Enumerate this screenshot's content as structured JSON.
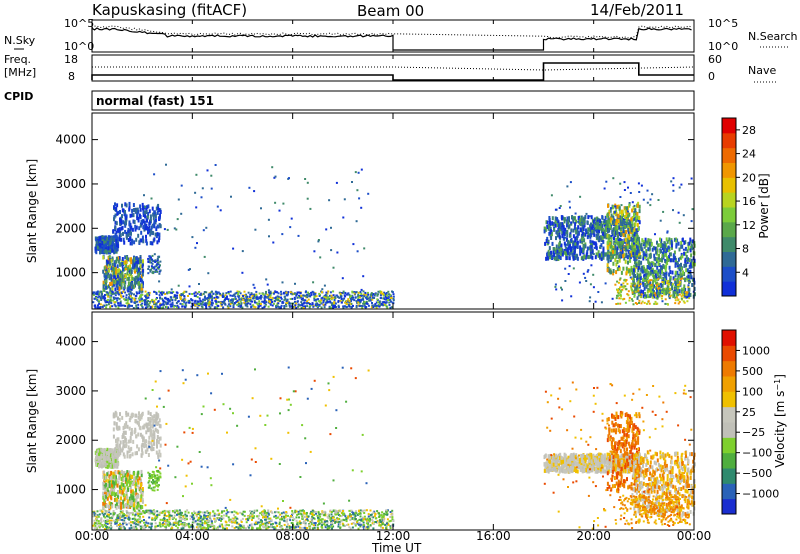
{
  "header": {
    "station": "Kapuskasing (fitACF)",
    "beam": "Beam 00",
    "date": "14/Feb/2011"
  },
  "side_labels": {
    "nsky": "N.Sky",
    "freq_line1": "Freq.",
    "freq_line2": "[MHz]",
    "cpid": "CPID",
    "nsearch": "N.Search",
    "nave": "Nave"
  },
  "small_axes": {
    "noise_left": [
      "10^5",
      "10^0"
    ],
    "noise_right": [
      "10^5",
      "10^0"
    ],
    "freq_left": [
      "18",
      "8"
    ],
    "nave_right": [
      "60",
      "0"
    ]
  },
  "cpid_text": "normal (fast) 151",
  "time_axis": {
    "label": "Time UT",
    "ticks": [
      "00:00",
      "04:00",
      "08:00",
      "12:00",
      "16:00",
      "20:00",
      "00:00"
    ],
    "tick_hours": [
      0,
      4,
      8,
      12,
      16,
      20,
      24
    ]
  },
  "chart_data": [
    {
      "type": "heatmap",
      "name": "power",
      "ylabel": "Slant Range [km]",
      "yticks": [
        "1000",
        "2000",
        "3000",
        "4000"
      ],
      "ytick_values": [
        1000,
        2000,
        3000,
        4000
      ],
      "ylim": [
        180,
        4600
      ],
      "xlim_hours": [
        0,
        24
      ],
      "colorbar": {
        "label": "Power [dB]",
        "ticks": [
          "4",
          "8",
          "12",
          "16",
          "20",
          "24",
          "28"
        ],
        "tick_values": [
          4,
          8,
          12,
          16,
          20,
          24,
          28
        ],
        "range": [
          0,
          30
        ],
        "colors": [
          "#1030d8",
          "#1c4ec8",
          "#2f6a96",
          "#3f8a6a",
          "#5aa84a",
          "#7ccc3a",
          "#b8d420",
          "#e8c000",
          "#f09600",
          "#ee6a00",
          "#e83c00",
          "#e00000"
        ]
      },
      "data_gaps_hours": [
        [
          12.0,
          18.0
        ]
      ]
    },
    {
      "type": "heatmap",
      "name": "velocity",
      "ylabel": "Slant Range [km]",
      "yticks": [
        "1000",
        "2000",
        "3000",
        "4000"
      ],
      "ytick_values": [
        1000,
        2000,
        3000,
        4000
      ],
      "ylim": [
        180,
        4600
      ],
      "xlim_hours": [
        0,
        24
      ],
      "colorbar": {
        "label": "Velocity [m s^-1]",
        "ticks": [
          "1000",
          "500",
          "100",
          "25",
          "−25",
          "−100",
          "−500",
          "−1000"
        ],
        "range": [
          -1200,
          1200
        ],
        "colors": [
          "#1a2ed0",
          "#2a62b8",
          "#2f8a6e",
          "#4fae3e",
          "#7ed02e",
          "#c0c0b8",
          "#c6c6bc",
          "#f0c000",
          "#f0a000",
          "#ee7a00",
          "#ea4a00",
          "#e01000"
        ]
      },
      "data_gaps_hours": [
        [
          12.0,
          18.0
        ]
      ]
    }
  ]
}
